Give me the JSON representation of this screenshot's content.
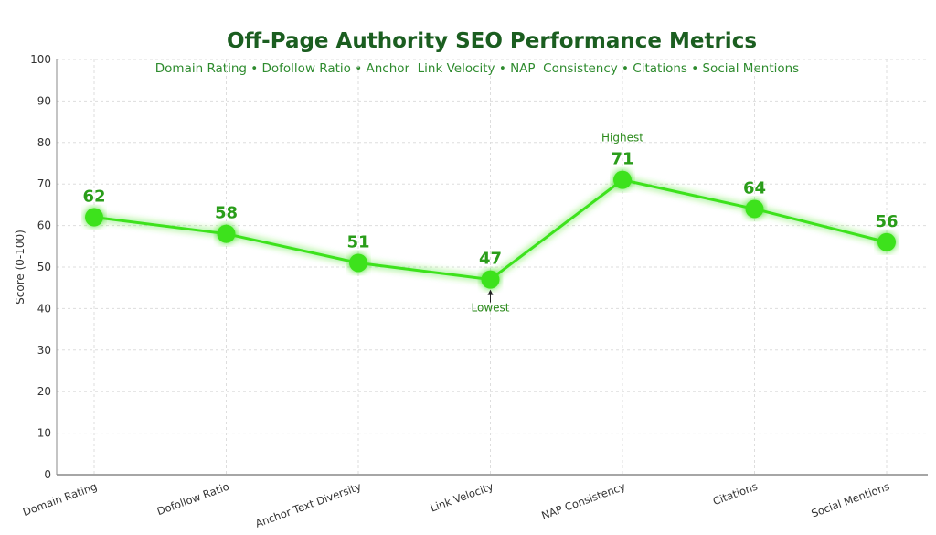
{
  "chart_data": {
    "type": "line",
    "title": "Off-Page Authority SEO Performance Metrics",
    "subtitle": "Domain Rating • Dofollow Ratio • Anchor  Link Velocity • NAP  Consistency • Citations • Social Mentions",
    "xlabel": "",
    "ylabel": "Score (0-100)",
    "ylim": [
      0,
      100
    ],
    "yticks": [
      0,
      10,
      20,
      30,
      40,
      50,
      60,
      70,
      80,
      90,
      100
    ],
    "grid": true,
    "categories": [
      "Domain Rating",
      "Dofollow Ratio",
      "Anchor Text Diversity",
      "Link Velocity",
      "NAP Consistency",
      "Citations",
      "Social Mentions"
    ],
    "series": [
      {
        "name": "Score",
        "values": [
          62,
          58,
          51,
          47,
          71,
          64,
          56
        ],
        "color": "#3ee21f"
      }
    ],
    "annotations": [
      {
        "text": "Highest",
        "category": "NAP Consistency"
      },
      {
        "text": "Lowest",
        "category": "Link Velocity"
      }
    ]
  }
}
